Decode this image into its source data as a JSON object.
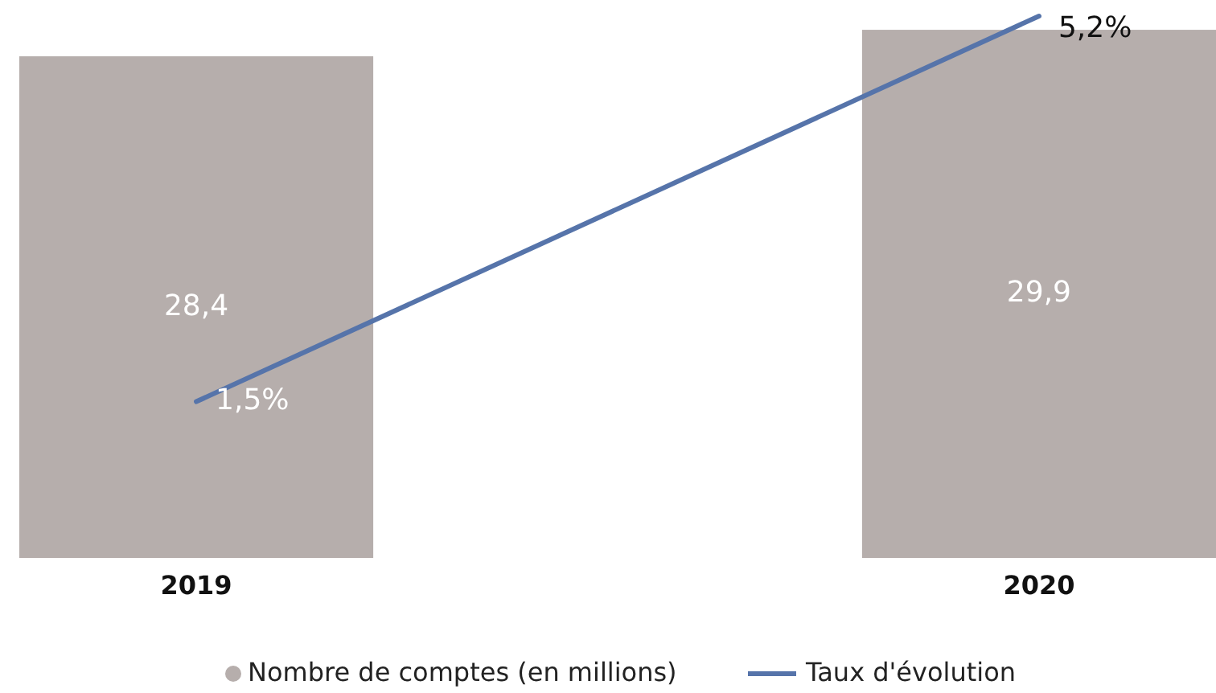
{
  "chart_data": {
    "type": "bar",
    "categories": [
      "2019",
      "2020"
    ],
    "legend": "bottom",
    "series": [
      {
        "name": "Nombre de comptes (en millions)",
        "color": "#b6aeac",
        "values": [
          28.4,
          29.9
        ],
        "value_labels": [
          "28,4",
          "29,9"
        ]
      },
      {
        "name": "Taux d'évolution",
        "type": "line",
        "axis": "y2",
        "color": "#5674aa",
        "values": [
          1.5,
          5.2
        ],
        "value_labels": [
          "1,5%",
          "5,2%"
        ]
      }
    ]
  }
}
